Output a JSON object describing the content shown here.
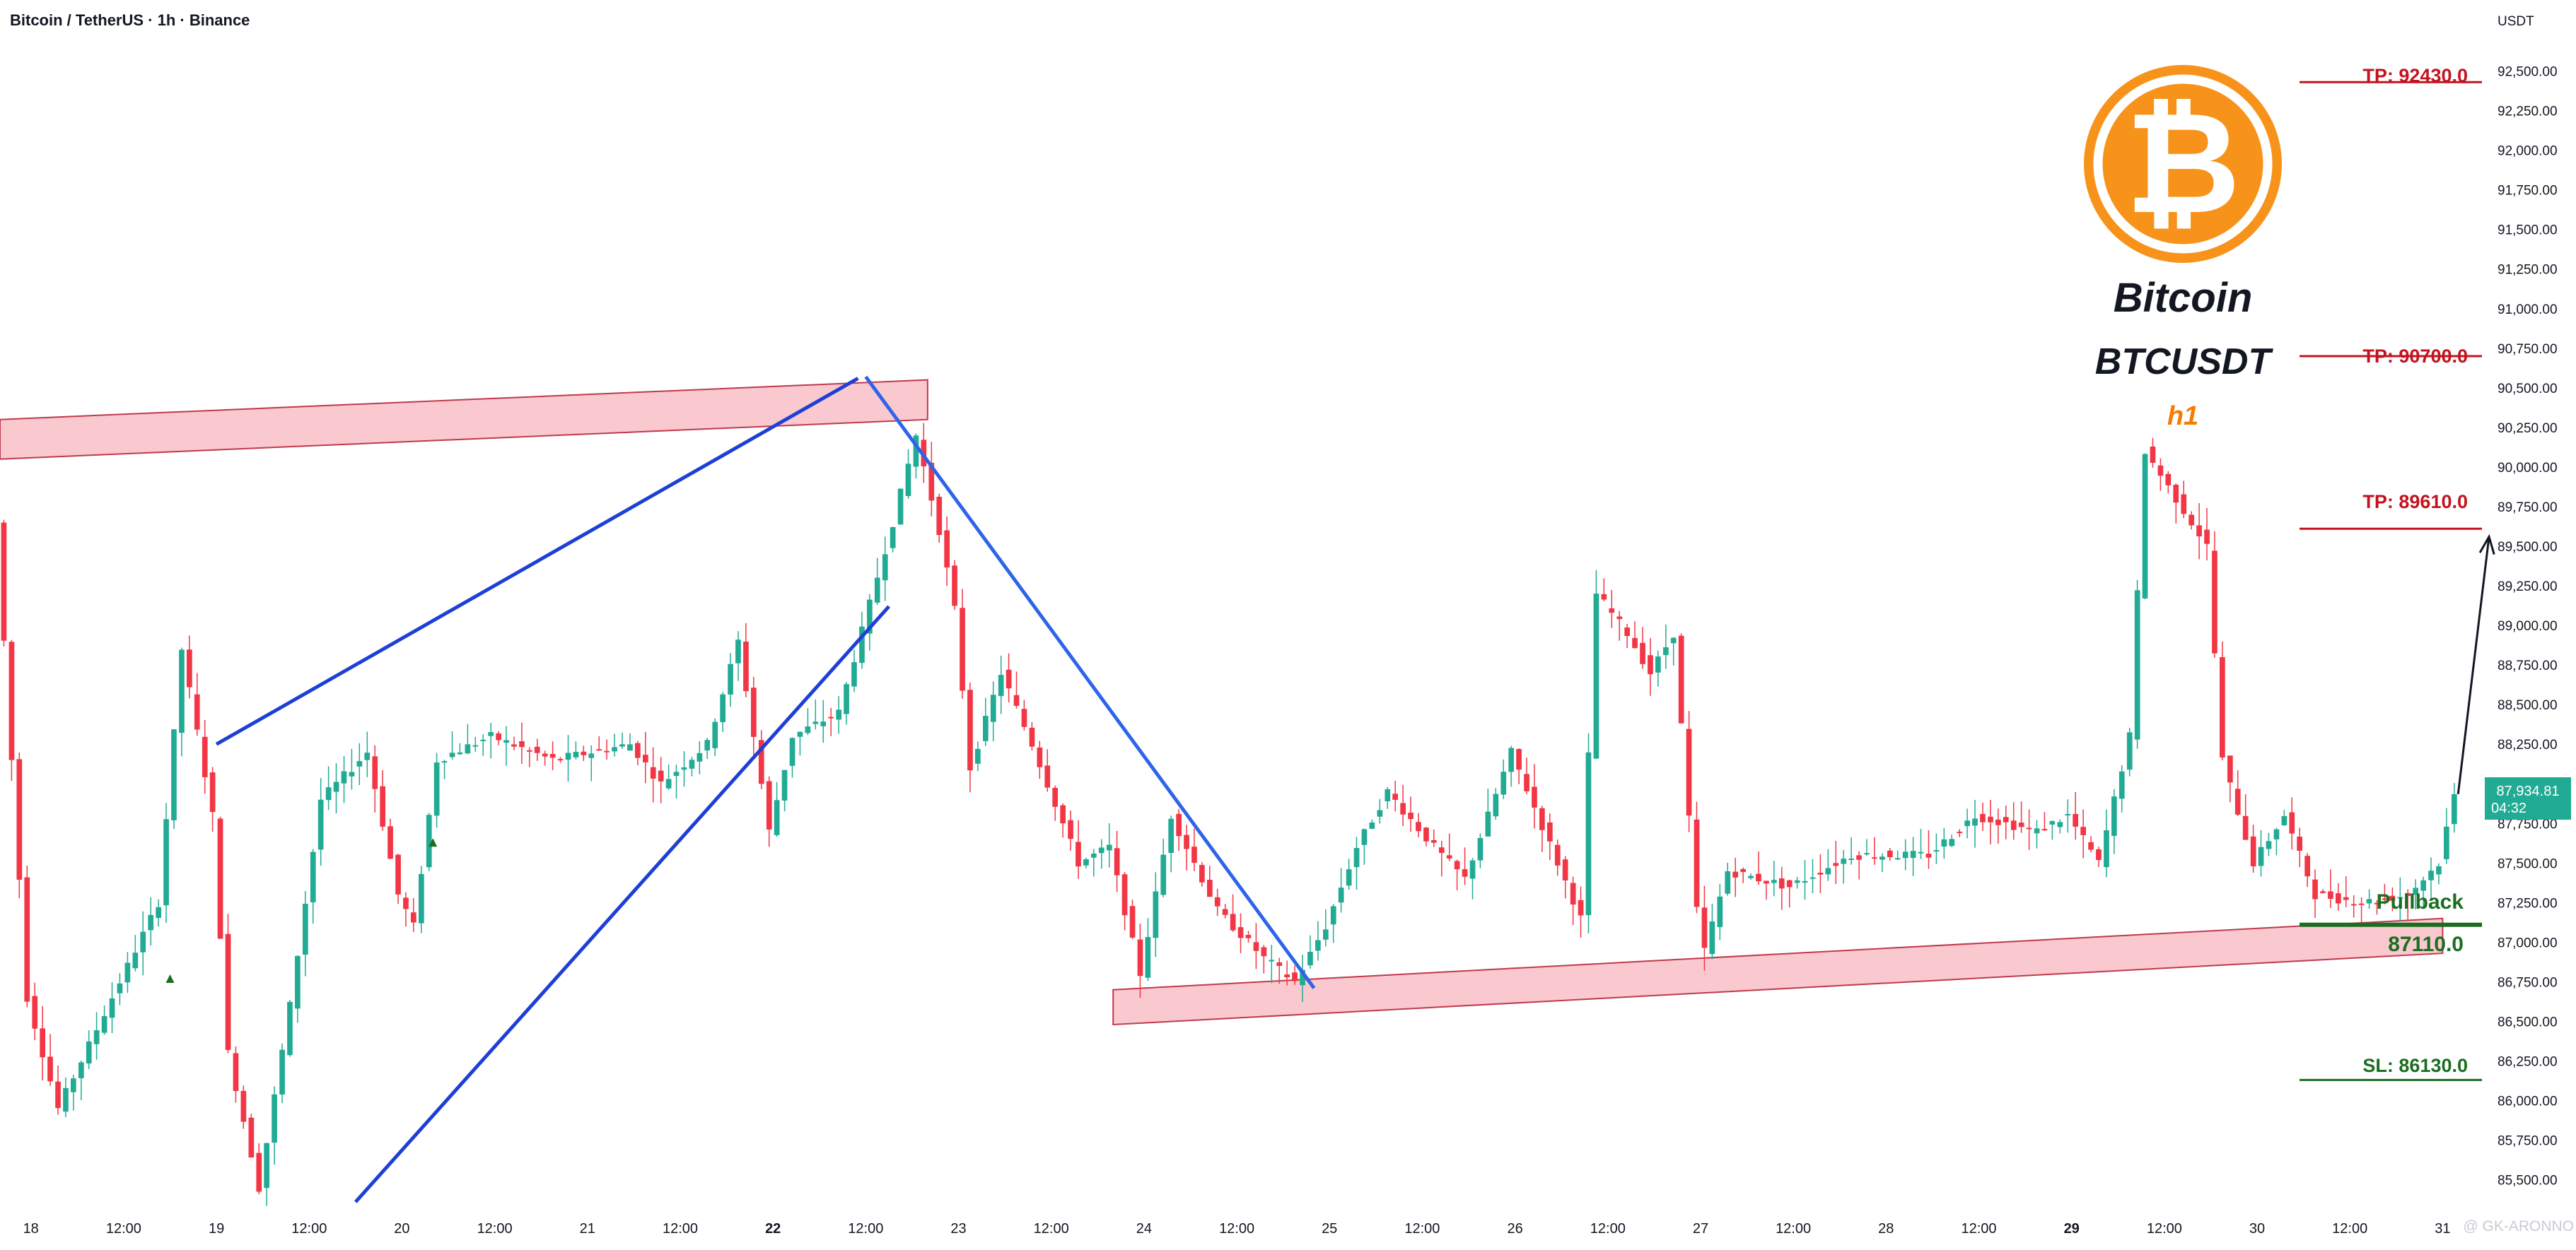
{
  "header": {
    "title": "Bitcoin / TetherUS · 1h · Binance"
  },
  "axis": {
    "unit": "USDT",
    "current_price": "87,934.81",
    "countdown": "04:32",
    "watermark": "@ GK-ARONNO"
  },
  "branding": {
    "name": "Bitcoin",
    "symbol": "BTCUSDT",
    "timeframe": "h1"
  },
  "levels": {
    "tp1": "TP: 92430.0",
    "tp2": "TP: 90700.0",
    "tp3": "TP: 89610.0",
    "pullback": "Pullback",
    "entry": "87110.0",
    "sl": "SL: 86130.0"
  },
  "colors": {
    "up": "#22ab94",
    "down": "#f23645",
    "trendline": "#1e3fd6",
    "zone_fill": "#f9c9cf",
    "zone_stroke": "#c0394b",
    "tp_line": "#c3131f",
    "sl_line": "#1b6e21",
    "logo": "#f7931a"
  },
  "chart_data": {
    "type": "candlestick",
    "title": "Bitcoin / TetherUS · 1h · Binance",
    "y_unit": "USDT",
    "ylim": [
      85320,
      92770
    ],
    "xlim": [
      "2024-11-17T20:00",
      "2024-12-01T06:00"
    ],
    "x_tick_labels": [
      "18",
      "12:00",
      "19",
      "12:00",
      "20",
      "12:00",
      "21",
      "12:00",
      "22",
      "12:00",
      "23",
      "12:00",
      "24",
      "12:00",
      "25",
      "12:00",
      "26",
      "12:00",
      "27",
      "12:00",
      "28",
      "12:00",
      "29",
      "12:00",
      "30",
      "12:00",
      "31"
    ],
    "y_tick_labels": [
      "92,500.00",
      "92,250.00",
      "92,000.00",
      "91,750.00",
      "91,500.00",
      "91,250.00",
      "91,000.00",
      "90,750.00",
      "90,500.00",
      "90,250.00",
      "90,000.00",
      "89,750.00",
      "89,500.00",
      "89,250.00",
      "89,000.00",
      "88,750.00",
      "88,500.00",
      "88,250.00",
      "88,000.00",
      "87,750.00",
      "87,500.00",
      "87,250.00",
      "87,000.00",
      "86,750.00",
      "86,500.00",
      "86,250.00",
      "86,000.00",
      "85,750.00",
      "85,500.00"
    ],
    "last_price": 87934.81,
    "keypoints": [
      {
        "t": "2024-11-17T20:00",
        "p": 89650
      },
      {
        "t": "2024-11-18T00:00",
        "p": 86650
      },
      {
        "t": "2024-11-18T04:00",
        "p": 85950
      },
      {
        "t": "2024-11-18T12:00",
        "p": 86750
      },
      {
        "t": "2024-11-18T17:00",
        "p": 87250
      },
      {
        "t": "2024-11-18T20:00",
        "p": 88850
      },
      {
        "t": "2024-11-19T00:00",
        "p": 87800
      },
      {
        "t": "2024-11-19T02:00",
        "p": 86300
      },
      {
        "t": "2024-11-19T06:00",
        "p": 85450
      },
      {
        "t": "2024-11-19T10:00",
        "p": 86600
      },
      {
        "t": "2024-11-19T14:00",
        "p": 87900
      },
      {
        "t": "2024-11-19T20:00",
        "p": 88200
      },
      {
        "t": "2024-11-20T00:00",
        "p": 87300
      },
      {
        "t": "2024-11-20T02:00",
        "p": 87100
      },
      {
        "t": "2024-11-20T05:00",
        "p": 88150
      },
      {
        "t": "2024-11-20T12:00",
        "p": 88300
      },
      {
        "t": "2024-11-20T20:00",
        "p": 88150
      },
      {
        "t": "2024-11-21T06:00",
        "p": 88250
      },
      {
        "t": "2024-11-21T10:00",
        "p": 88000
      },
      {
        "t": "2024-11-21T16:00",
        "p": 88250
      },
      {
        "t": "2024-11-21T20:00",
        "p": 88900
      },
      {
        "t": "2024-11-22T00:00",
        "p": 87700
      },
      {
        "t": "2024-11-22T03:00",
        "p": 88300
      },
      {
        "t": "2024-11-22T09:00",
        "p": 88450
      },
      {
        "t": "2024-11-22T16:00",
        "p": 89650
      },
      {
        "t": "2024-11-22T19:00",
        "p": 90200
      },
      {
        "t": "2024-11-22T22:00",
        "p": 89600
      },
      {
        "t": "2024-11-23T00:00",
        "p": 89100
      },
      {
        "t": "2024-11-23T02:00",
        "p": 88100
      },
      {
        "t": "2024-11-23T06:00",
        "p": 88700
      },
      {
        "t": "2024-11-23T10:00",
        "p": 88250
      },
      {
        "t": "2024-11-23T16:00",
        "p": 87500
      },
      {
        "t": "2024-11-23T20:00",
        "p": 87600
      },
      {
        "t": "2024-11-24T00:00",
        "p": 86800
      },
      {
        "t": "2024-11-24T04:00",
        "p": 87800
      },
      {
        "t": "2024-11-24T10:00",
        "p": 87200
      },
      {
        "t": "2024-11-24T16:00",
        "p": 86900
      },
      {
        "t": "2024-11-24T20:00",
        "p": 86750
      },
      {
        "t": "2024-11-25T00:00",
        "p": 87100
      },
      {
        "t": "2024-11-25T04:00",
        "p": 87600
      },
      {
        "t": "2024-11-25T08:00",
        "p": 87950
      },
      {
        "t": "2024-11-25T14:00",
        "p": 87600
      },
      {
        "t": "2024-11-25T18:00",
        "p": 87400
      },
      {
        "t": "2024-11-26T00:00",
        "p": 88200
      },
      {
        "t": "2024-11-26T06:00",
        "p": 87500
      },
      {
        "t": "2024-11-26T09:00",
        "p": 87150
      },
      {
        "t": "2024-11-26T11:00",
        "p": 89200
      },
      {
        "t": "2024-11-26T15:00",
        "p": 88950
      },
      {
        "t": "2024-11-26T18:00",
        "p": 88700
      },
      {
        "t": "2024-11-26T21:00",
        "p": 88950
      },
      {
        "t": "2024-11-27T00:00",
        "p": 87200
      },
      {
        "t": "2024-11-27T01:00",
        "p": 86950
      },
      {
        "t": "2024-11-27T04:00",
        "p": 87450
      },
      {
        "t": "2024-11-27T12:00",
        "p": 87350
      },
      {
        "t": "2024-11-27T20:00",
        "p": 87550
      },
      {
        "t": "2024-11-28T06:00",
        "p": 87550
      },
      {
        "t": "2024-11-28T12:00",
        "p": 87800
      },
      {
        "t": "2024-11-28T20:00",
        "p": 87700
      },
      {
        "t": "2024-11-29T00:00",
        "p": 87800
      },
      {
        "t": "2024-11-29T04:00",
        "p": 87500
      },
      {
        "t": "2024-11-29T08:00",
        "p": 88300
      },
      {
        "t": "2024-11-29T10:00",
        "p": 90100
      },
      {
        "t": "2024-11-29T14:00",
        "p": 89800
      },
      {
        "t": "2024-11-29T18:00",
        "p": 89500
      },
      {
        "t": "2024-11-29T20:00",
        "p": 88150
      },
      {
        "t": "2024-11-30T00:00",
        "p": 87500
      },
      {
        "t": "2024-11-30T04:00",
        "p": 87800
      },
      {
        "t": "2024-11-30T08:00",
        "p": 87300
      },
      {
        "t": "2024-11-30T14:00",
        "p": 87250
      },
      {
        "t": "2024-11-30T20:00",
        "p": 87300
      },
      {
        "t": "2024-12-01T00:00",
        "p": 87500
      },
      {
        "t": "2024-12-01T02:00",
        "p": 87934.81
      }
    ],
    "annotations": {
      "resistance_zone": [
        {
          "t": "2024-11-17T20:00",
          "p": 90300
        },
        {
          "t": "2024-11-22T20:00",
          "p": 90550
        },
        {
          "t": "2024-11-22T20:00",
          "p": 90300
        },
        {
          "t": "2024-11-17T20:00",
          "p": 90050
        }
      ],
      "support_zone": [
        {
          "t": "2024-11-23T20:00",
          "p": 86700
        },
        {
          "t": "2024-12-01T00:00",
          "p": 87150
        },
        {
          "t": "2024-12-01T00:00",
          "p": 86930
        },
        {
          "t": "2024-11-23T20:00",
          "p": 86480
        }
      ],
      "trendlines": [
        [
          {
            "t": "2024-11-19T00:00",
            "p": 88250
          },
          {
            "t": "2024-11-22T11:00",
            "p": 90560
          }
        ],
        [
          {
            "t": "2024-11-22T12:00",
            "p": 90570
          },
          {
            "t": "2024-11-24T22:00",
            "p": 86710
          }
        ],
        [
          {
            "t": "2024-11-19T18:00",
            "p": 85360
          },
          {
            "t": "2024-11-22T15:00",
            "p": 89120
          }
        ]
      ],
      "projection": [
        {
          "t": "2024-12-01T02:00",
          "p": 87934.81
        },
        {
          "t": "2024-12-01T06:00",
          "p": 89560
        }
      ],
      "levels": [
        {
          "label": "TP: 92430.0",
          "price": 92430.0
        },
        {
          "label": "TP: 90700.0",
          "price": 90700.0
        },
        {
          "label": "TP: 89610.0",
          "price": 89610.0
        },
        {
          "label": "Pullback",
          "price": 87110.0
        },
        {
          "label": "SL: 86130.0",
          "price": 86130.0
        }
      ],
      "markers": [
        {
          "t": "2024-11-18T18:00",
          "p": 86770
        },
        {
          "t": "2024-11-20T04:00",
          "p": 87630
        }
      ]
    }
  }
}
